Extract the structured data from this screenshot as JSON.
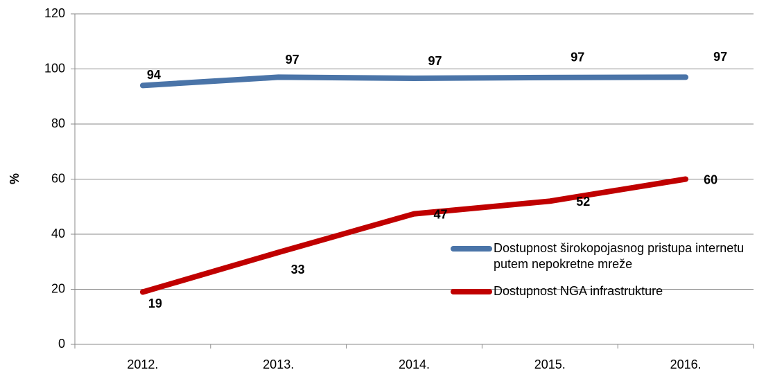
{
  "chart_data": {
    "type": "line",
    "y_label": "%",
    "categories": [
      "2012.",
      "2013.",
      "2014.",
      "2015.",
      "2016."
    ],
    "series": [
      {
        "name": "Dostupnost širokopojasnog pristupa internetu putem nepokretne mreže",
        "color": "#4a74a8",
        "values": [
          94,
          97,
          96.6,
          96.9,
          97
        ],
        "value_labels": [
          "94",
          "97",
          "97",
          "97",
          "97"
        ]
      },
      {
        "name": "Dostupnost NGA infrastrukture",
        "color": "#c00000",
        "values": [
          19,
          33.4,
          47.4,
          52,
          60
        ],
        "value_labels": [
          "19",
          "33",
          "47",
          "52",
          "60"
        ]
      }
    ],
    "ylim": [
      0,
      120
    ],
    "yticks": [
      0,
      20,
      40,
      60,
      80,
      100,
      120
    ],
    "grid": true
  }
}
